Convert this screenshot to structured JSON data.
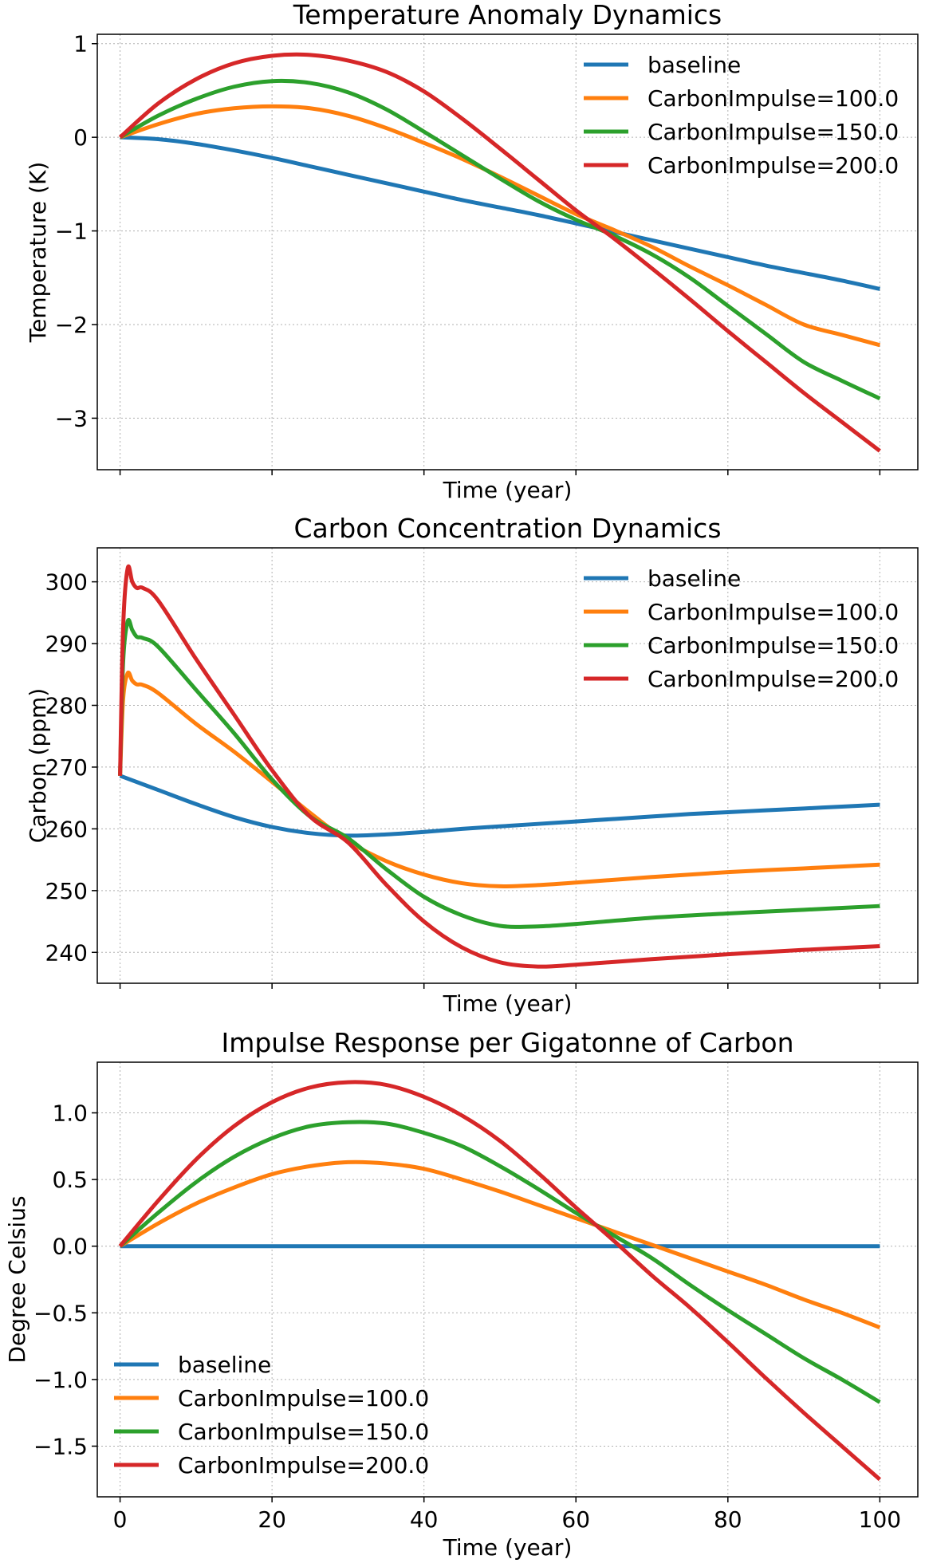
{
  "figure": {
    "background": "#ffffff"
  },
  "series_colors": {
    "baseline": "#1f77b4",
    "CarbonImpulse=100.0": "#ff7f0e",
    "CarbonImpulse=150.0": "#2ca02c",
    "CarbonImpulse=200.0": "#d62728"
  },
  "chart_data": [
    {
      "type": "line",
      "title": "Temperature Anomaly Dynamics",
      "xlabel": "Time (year)",
      "ylabel": "Temperature  (K)",
      "xlim": [
        -3,
        105
      ],
      "ylim": [
        -3.55,
        1.1
      ],
      "xticks": [
        0,
        20,
        40,
        60,
        80,
        100
      ],
      "xtick_labels_shown": false,
      "yticks": [
        1,
        0,
        -1,
        -2,
        -3
      ],
      "ytick_labels": [
        "1",
        "0",
        "−1",
        "−2",
        "−3"
      ],
      "grid": true,
      "legend": "upper right",
      "series": [
        {
          "name": "baseline",
          "x": [
            0,
            5,
            10,
            15,
            20,
            25,
            30,
            35,
            40,
            45,
            50,
            55,
            60,
            65,
            70,
            75,
            80,
            85,
            90,
            95,
            100
          ],
          "values": [
            0,
            -0.02,
            -0.07,
            -0.14,
            -0.22,
            -0.31,
            -0.4,
            -0.49,
            -0.58,
            -0.67,
            -0.75,
            -0.83,
            -0.92,
            -1.01,
            -1.1,
            -1.19,
            -1.28,
            -1.37,
            -1.45,
            -1.53,
            -1.62
          ]
        },
        {
          "name": "CarbonImpulse=100.0",
          "x": [
            0,
            5,
            10,
            15,
            20,
            25,
            30,
            35,
            40,
            45,
            50,
            55,
            60,
            65,
            70,
            75,
            80,
            85,
            90,
            95,
            100
          ],
          "values": [
            0,
            0.14,
            0.25,
            0.31,
            0.33,
            0.31,
            0.23,
            0.1,
            -0.06,
            -0.23,
            -0.42,
            -0.62,
            -0.82,
            -0.99,
            -1.17,
            -1.38,
            -1.58,
            -1.79,
            -2.0,
            -2.11,
            -2.22
          ]
        },
        {
          "name": "CarbonImpulse=150.0",
          "x": [
            0,
            5,
            10,
            15,
            20,
            25,
            30,
            35,
            40,
            45,
            50,
            55,
            60,
            65,
            70,
            75,
            80,
            85,
            90,
            95,
            100
          ],
          "values": [
            0,
            0.23,
            0.41,
            0.54,
            0.6,
            0.58,
            0.48,
            0.3,
            0.06,
            -0.19,
            -0.44,
            -0.68,
            -0.88,
            -1.05,
            -1.25,
            -1.5,
            -1.8,
            -2.1,
            -2.4,
            -2.6,
            -2.79
          ]
        },
        {
          "name": "CarbonImpulse=200.0",
          "x": [
            0,
            5,
            10,
            15,
            20,
            25,
            30,
            35,
            40,
            45,
            50,
            55,
            60,
            65,
            70,
            75,
            80,
            85,
            90,
            95,
            100
          ],
          "values": [
            0,
            0.36,
            0.62,
            0.79,
            0.87,
            0.88,
            0.82,
            0.7,
            0.49,
            0.2,
            -0.12,
            -0.45,
            -0.78,
            -1.08,
            -1.4,
            -1.73,
            -2.07,
            -2.4,
            -2.73,
            -3.04,
            -3.35
          ]
        }
      ]
    },
    {
      "type": "line",
      "title": "Carbon Concentration Dynamics",
      "xlabel": "Time (year)",
      "ylabel": "Carbon (ppm)",
      "xlim": [
        -3,
        105
      ],
      "ylim": [
        235,
        305.5
      ],
      "xticks": [
        0,
        20,
        40,
        60,
        80,
        100
      ],
      "xtick_labels_shown": false,
      "yticks": [
        300,
        290,
        280,
        270,
        260,
        250,
        240
      ],
      "ytick_labels": [
        "300",
        "290",
        "280",
        "270",
        "260",
        "250",
        "240"
      ],
      "grid": true,
      "legend": "upper right",
      "series": [
        {
          "name": "baseline",
          "x": [
            0,
            5,
            10,
            15,
            20,
            25,
            30,
            35,
            40,
            45,
            50,
            55,
            60,
            65,
            70,
            75,
            80,
            85,
            90,
            95,
            100
          ],
          "values": [
            268.6,
            266.3,
            264.0,
            261.9,
            260.3,
            259.3,
            258.9,
            259.1,
            259.5,
            260.0,
            260.4,
            260.8,
            261.2,
            261.6,
            262.0,
            262.4,
            262.7,
            263.0,
            263.3,
            263.6,
            263.9
          ]
        },
        {
          "name": "CarbonImpulse=100.0",
          "x": [
            0,
            0.4,
            1,
            1.6,
            2.2,
            3,
            5,
            10,
            15,
            20,
            25,
            30,
            35,
            40,
            45,
            50,
            55,
            60,
            70,
            80,
            90,
            100
          ],
          "values": [
            268.6,
            281.0,
            285.2,
            284.0,
            283.4,
            283.3,
            282.0,
            277.0,
            272.5,
            267.6,
            262.6,
            258.0,
            254.8,
            252.6,
            251.2,
            250.7,
            250.9,
            251.3,
            252.2,
            253.0,
            253.6,
            254.2
          ]
        },
        {
          "name": "CarbonImpulse=150.0",
          "x": [
            0,
            0.4,
            1,
            1.6,
            2.2,
            3,
            5,
            10,
            15,
            20,
            25,
            30,
            35,
            40,
            45,
            50,
            55,
            60,
            70,
            80,
            90,
            100
          ],
          "values": [
            268.6,
            287.0,
            293.6,
            292.2,
            291.1,
            290.9,
            289.5,
            282.5,
            275.5,
            268.0,
            262.0,
            258.5,
            253.5,
            249.0,
            246.0,
            244.3,
            244.2,
            244.6,
            245.6,
            246.3,
            246.9,
            247.5
          ]
        },
        {
          "name": "CarbonImpulse=200.0",
          "x": [
            0,
            0.4,
            1,
            1.6,
            2.2,
            3,
            5,
            10,
            15,
            20,
            25,
            30,
            35,
            40,
            45,
            50,
            55,
            60,
            70,
            80,
            90,
            100
          ],
          "values": [
            268.6,
            292.5,
            302.2,
            300.0,
            299.0,
            299.0,
            297.0,
            287.5,
            278.5,
            269.5,
            262.0,
            257.8,
            251.0,
            245.0,
            240.8,
            238.4,
            237.7,
            238.0,
            238.9,
            239.7,
            240.4,
            241.0
          ]
        }
      ]
    },
    {
      "type": "line",
      "title": "Impulse Response per Gigatonne of Carbon",
      "xlabel": "Time (year)",
      "ylabel": "Degree Celsius",
      "xlim": [
        -3,
        105
      ],
      "ylim": [
        -1.88,
        1.38
      ],
      "xticks": [
        0,
        20,
        40,
        60,
        80,
        100
      ],
      "xtick_labels": [
        "0",
        "20",
        "40",
        "60",
        "80",
        "100"
      ],
      "xtick_labels_shown": true,
      "yticks": [
        1.0,
        0.5,
        0.0,
        -0.5,
        -1.0,
        -1.5
      ],
      "ytick_labels": [
        "1.0",
        "0.5",
        "0.0",
        "−0.5",
        "−1.0",
        "−1.5"
      ],
      "grid": true,
      "legend": "lower left",
      "series": [
        {
          "name": "baseline",
          "x": [
            0,
            50,
            100
          ],
          "values": [
            0,
            0,
            0
          ]
        },
        {
          "name": "CarbonImpulse=100.0",
          "x": [
            0,
            5,
            10,
            15,
            20,
            25,
            30,
            35,
            40,
            45,
            50,
            55,
            60,
            65,
            70,
            75,
            80,
            85,
            90,
            95,
            100
          ],
          "values": [
            0,
            0.17,
            0.32,
            0.44,
            0.54,
            0.6,
            0.63,
            0.62,
            0.58,
            0.5,
            0.41,
            0.31,
            0.21,
            0.11,
            0.01,
            -0.09,
            -0.19,
            -0.29,
            -0.4,
            -0.5,
            -0.61
          ]
        },
        {
          "name": "CarbonImpulse=150.0",
          "x": [
            0,
            5,
            10,
            15,
            20,
            25,
            30,
            35,
            40,
            45,
            50,
            55,
            60,
            65,
            70,
            75,
            80,
            85,
            90,
            95,
            100
          ],
          "values": [
            0,
            0.25,
            0.48,
            0.67,
            0.81,
            0.9,
            0.93,
            0.92,
            0.85,
            0.75,
            0.6,
            0.43,
            0.25,
            0.08,
            -0.09,
            -0.29,
            -0.48,
            -0.66,
            -0.84,
            -1.0,
            -1.17
          ]
        },
        {
          "name": "CarbonImpulse=200.0",
          "x": [
            0,
            5,
            10,
            15,
            20,
            25,
            30,
            35,
            40,
            45,
            50,
            55,
            60,
            65,
            70,
            75,
            80,
            85,
            90,
            95,
            100
          ],
          "values": [
            0,
            0.34,
            0.65,
            0.9,
            1.08,
            1.19,
            1.23,
            1.21,
            1.12,
            0.98,
            0.79,
            0.55,
            0.29,
            0.04,
            -0.22,
            -0.46,
            -0.72,
            -0.99,
            -1.25,
            -1.5,
            -1.75
          ]
        }
      ]
    }
  ]
}
